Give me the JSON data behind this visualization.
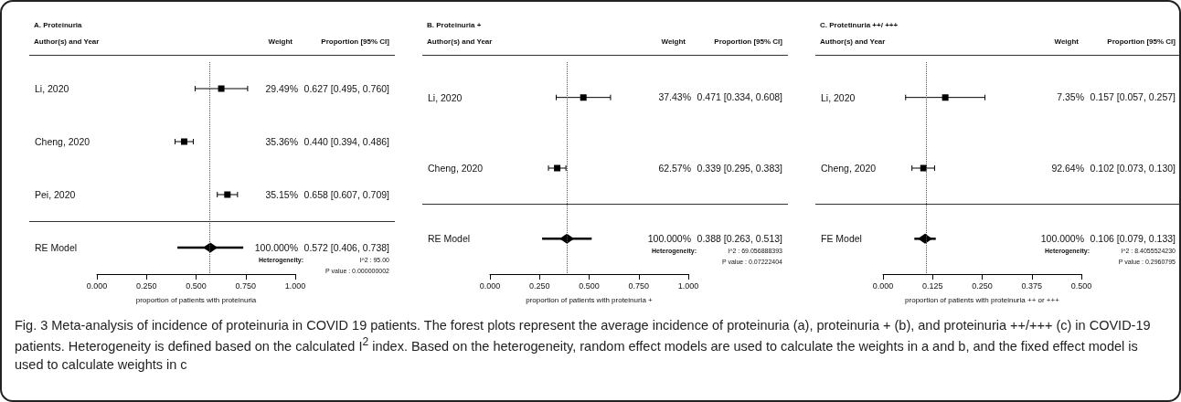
{
  "chart_data": [
    {
      "type": "scatter",
      "title": "A. Proteinuria",
      "xlabel": "proportion of patients with proteinuria",
      "orientation": "horizontal",
      "categories": [
        "Li, 2020",
        "Cheng, 2020",
        "Pei, 2020",
        "RE Model"
      ],
      "series": [
        {
          "marker": "square",
          "color": "#000000",
          "values": [
            0.627,
            0.44,
            0.658,
            null
          ],
          "errors": [
            [
              0.495,
              0.76
            ],
            [
              0.394,
              0.486
            ],
            [
              0.607,
              0.709
            ],
            null
          ],
          "value_labels": [
            "0.627 [0.495, 0.760]",
            "0.440 [0.394, 0.486]",
            "0.658 [0.607, 0.709]",
            null
          ]
        },
        {
          "marker": "diamond",
          "color": "#000000",
          "values": [
            null,
            null,
            null,
            0.572
          ],
          "errors": [
            null,
            null,
            null,
            [
              0.406,
              0.738
            ]
          ]
        }
      ],
      "xlim": [
        0,
        1
      ],
      "xticks": [
        {
          "value": 0,
          "label": "0.000"
        },
        {
          "value": 0.25,
          "label": "0.250"
        },
        {
          "value": 0.5,
          "label": "0.500"
        },
        {
          "value": 0.75,
          "label": "0.750"
        },
        {
          "value": 1,
          "label": "1.000"
        }
      ],
      "ref_lines": [
        {
          "axis": "x",
          "value": 0.572,
          "color": "#555555",
          "line_style": "dotted"
        }
      ],
      "annotations": [
        "Author(s) and Year",
        "Weight",
        "Proportion [95% CI]",
        "Heterogeneity:",
        "I^2 : 95.00",
        "P value : 0.000000002",
        "29.49%",
        "35.36%",
        "35.15%",
        "100.000%",
        "0.572 [0.406, 0.738]",
        "Fig. 3 Meta-analysis of incidence of proteinuria in COVID 19 patients. The forest plots represent the average incidence of proteinuria (a), proteinuria + (b), and proteinuria ++/+++ (c) in COVID-19 patients. Heterogeneity is defined based on the calculated I$^{2}$ index. Based on the heterogeneity, random effect models are used to calculate the weights in a and b, and the fixed effect model is used to calculate weights in c"
      ]
    },
    {
      "type": "scatter",
      "title": "B. Proteinuria +",
      "xlabel": "proportion of patients with proteinuria +",
      "orientation": "horizontal",
      "categories": [
        "Li, 2020",
        "Cheng, 2020",
        "RE Model"
      ],
      "series": [
        {
          "marker": "square",
          "color": "#000000",
          "values": [
            0.471,
            0.339,
            null
          ],
          "errors": [
            [
              0.334,
              0.608
            ],
            [
              0.295,
              0.383
            ],
            null
          ],
          "value_labels": [
            "0.471 [0.334, 0.608]",
            "0.339 [0.295, 0.383]",
            null
          ]
        },
        {
          "marker": "diamond",
          "color": "#000000",
          "values": [
            null,
            null,
            0.388
          ],
          "errors": [
            null,
            null,
            [
              0.263,
              0.513
            ]
          ]
        }
      ],
      "xlim": [
        0,
        1
      ],
      "xticks": [
        {
          "value": 0,
          "label": "0.000"
        },
        {
          "value": 0.25,
          "label": "0.250"
        },
        {
          "value": 0.5,
          "label": "0.500"
        },
        {
          "value": 0.75,
          "label": "0.750"
        },
        {
          "value": 1,
          "label": "1.000"
        }
      ],
      "ref_lines": [
        {
          "axis": "x",
          "value": 0.388,
          "color": "#555555",
          "line_style": "dotted"
        }
      ],
      "annotations": [
        "Author(s) and Year",
        "Weight",
        "Proportion [95% CI]",
        "Heterogeneity:",
        "I^2 : 69.056888393",
        "P value : 0.07222404",
        "37.43%",
        "62.57%",
        "100.000%",
        "0.388 [0.263, 0.513]"
      ]
    },
    {
      "type": "scatter",
      "title": "C. Protetinuria ++/ +++",
      "xlabel": "proportion of patients with proteinuria ++ or +++",
      "orientation": "horizontal",
      "categories": [
        "Li, 2020",
        "Cheng, 2020",
        "FE Model"
      ],
      "series": [
        {
          "marker": "square",
          "color": "#000000",
          "values": [
            0.157,
            0.102,
            null
          ],
          "errors": [
            [
              0.057,
              0.257
            ],
            [
              0.073,
              0.13
            ],
            null
          ],
          "value_labels": [
            "0.157 [0.057, 0.257]",
            "0.102 [0.073, 0.130]",
            null
          ]
        },
        {
          "marker": "diamond",
          "color": "#000000",
          "values": [
            null,
            null,
            0.106
          ],
          "errors": [
            null,
            null,
            [
              0.079,
              0.133
            ]
          ]
        }
      ],
      "xlim": [
        0,
        0.5
      ],
      "xticks": [
        {
          "value": 0,
          "label": "0.000"
        },
        {
          "value": 0.125,
          "label": "0.125"
        },
        {
          "value": 0.25,
          "label": "0.250"
        },
        {
          "value": 0.375,
          "label": "0.375"
        },
        {
          "value": 0.5,
          "label": "0.500"
        }
      ],
      "ref_lines": [
        {
          "axis": "x",
          "value": 0.106,
          "color": "#555555",
          "line_style": "dotted"
        }
      ],
      "annotations": [
        "Author(s) and Year",
        "Weight",
        "Proportion [95% CI]",
        "Heterogeneity:",
        "I^2 : 8.4055524230",
        "P value : 0.2960795",
        "7.35%",
        "92.64%",
        "100.000%",
        "0.106 [0.079, 0.133]"
      ]
    }
  ]
}
